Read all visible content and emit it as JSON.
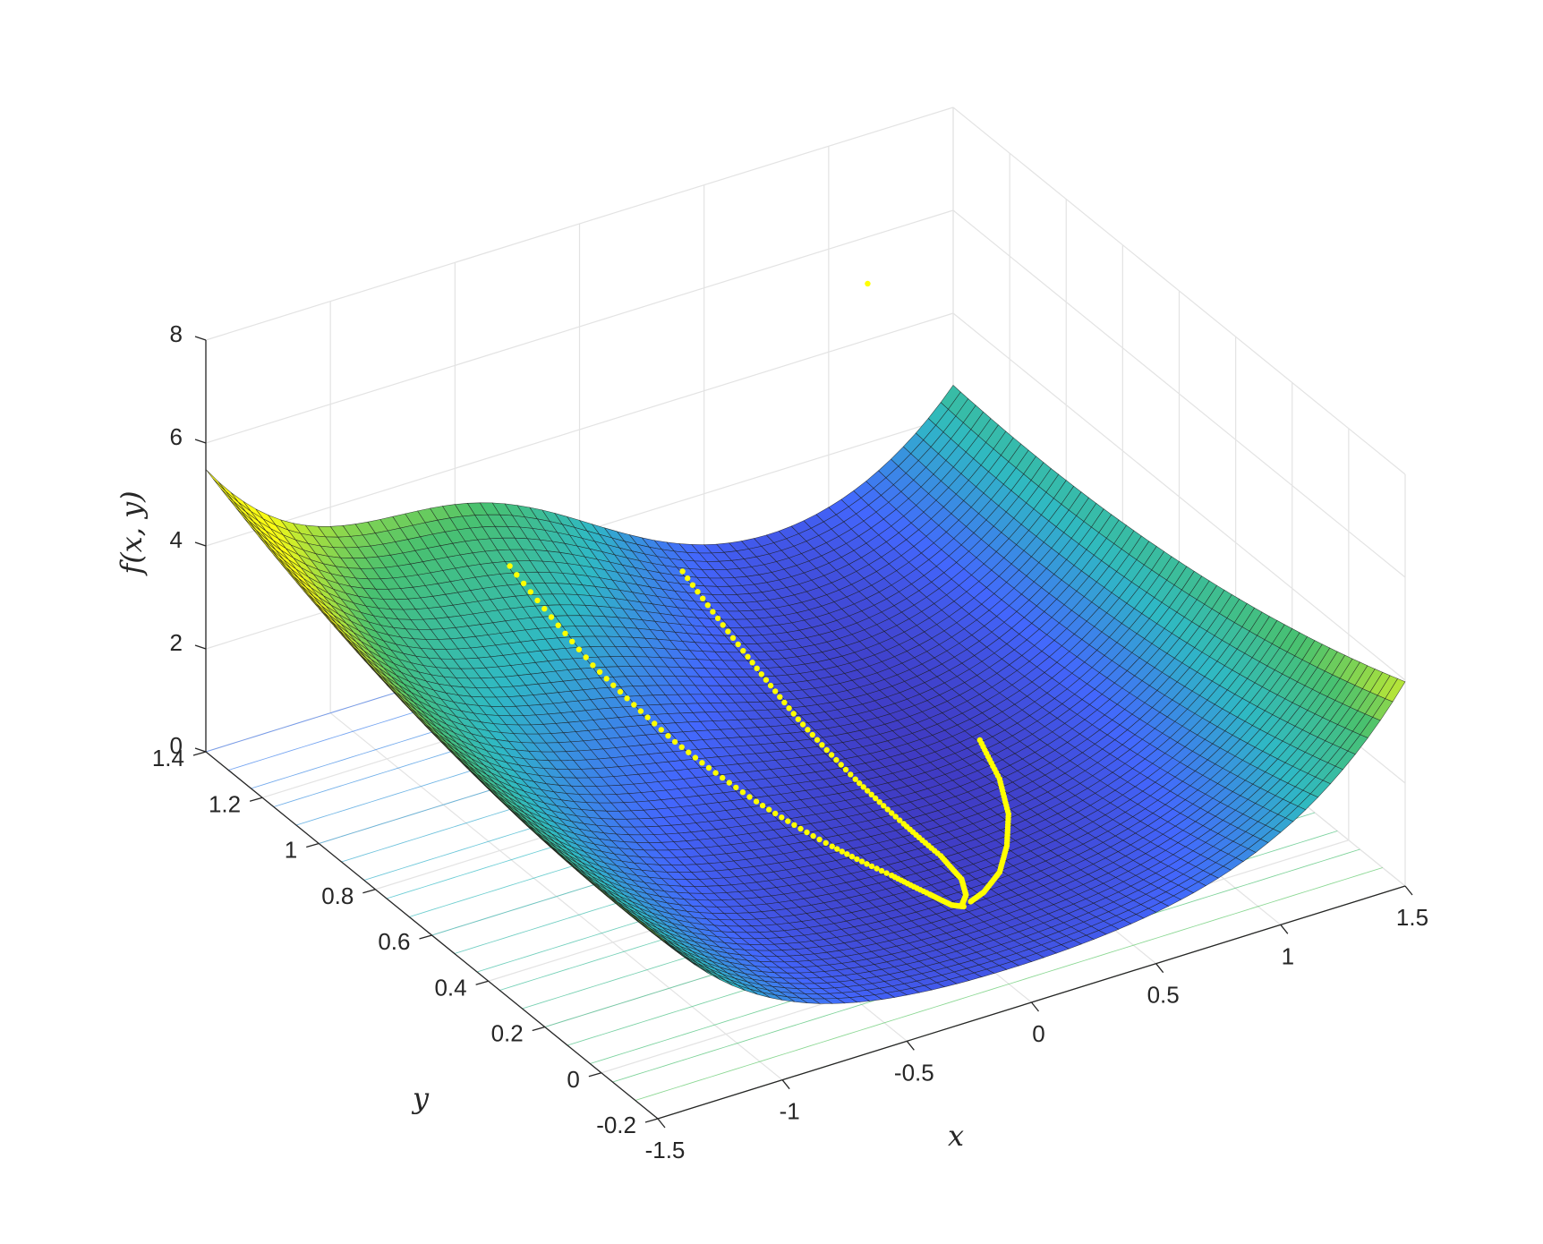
{
  "chart_data": {
    "type": "surface",
    "title": "",
    "xlabel": "x",
    "ylabel": "y",
    "zlabel": "f(x, y)",
    "xlim": [
      -1.5,
      1.5
    ],
    "ylim": [
      -0.2,
      1.4
    ],
    "zlim": [
      0,
      8
    ],
    "x_ticks": [
      "-1.5",
      "-1",
      "-0.5",
      "0",
      "0.5",
      "1",
      "1.5"
    ],
    "y_ticks": [
      "-0.2",
      "0",
      "0.2",
      "0.4",
      "0.6",
      "0.8",
      "1",
      "1.2",
      "1.4"
    ],
    "z_ticks": [
      "0",
      "2",
      "4",
      "6",
      "8"
    ],
    "grid": true,
    "colormap": [
      "#3e26a8",
      "#4367fd",
      "#2fb9c4",
      "#49c16f",
      "#f9fb15"
    ],
    "surface_grid_resolution": 60,
    "trajectory_color": "#ffff00",
    "trajectories": [
      {
        "points": [
          [
            -0.45,
            1.25
          ],
          [
            -0.4,
            1.0
          ],
          [
            -0.32,
            0.78
          ],
          [
            -0.22,
            0.58
          ],
          [
            -0.12,
            0.4
          ],
          [
            -0.04,
            0.26
          ],
          [
            0.0,
            0.16
          ],
          [
            0.02,
            0.1
          ],
          [
            0.05,
            0.08
          ]
        ]
      },
      {
        "points": [
          [
            0.3,
            1.3
          ],
          [
            0.26,
            1.05
          ],
          [
            0.22,
            0.82
          ],
          [
            0.2,
            0.6
          ],
          [
            0.19,
            0.42
          ],
          [
            0.18,
            0.28
          ],
          [
            0.15,
            0.18
          ],
          [
            0.1,
            0.12
          ],
          [
            0.05,
            0.09
          ]
        ]
      },
      {
        "points": [
          [
            0.7,
            0.6
          ],
          [
            0.62,
            0.46
          ],
          [
            0.52,
            0.34
          ],
          [
            0.4,
            0.24
          ],
          [
            0.28,
            0.16
          ],
          [
            0.16,
            0.11
          ],
          [
            0.08,
            0.09
          ]
        ]
      }
    ],
    "outlier_point": [
      1.1,
      1.35,
      5.4
    ]
  }
}
